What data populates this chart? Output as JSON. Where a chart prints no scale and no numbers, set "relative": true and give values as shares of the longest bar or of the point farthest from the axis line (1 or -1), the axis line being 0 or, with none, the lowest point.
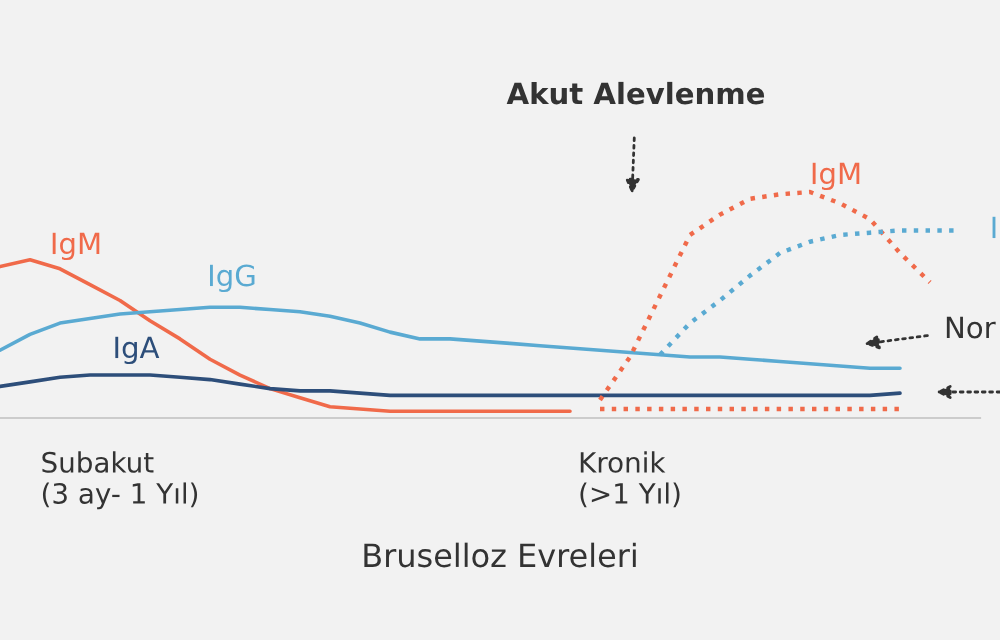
{
  "chart_data": {
    "type": "line",
    "relative": true,
    "xlabel": "Bruselloz Evreleri",
    "legend": false,
    "grid": false,
    "marker": "none",
    "categories": [
      null,
      null,
      null,
      null,
      "Subakut\n(3 ay- 1 Yıl)",
      null,
      null,
      null,
      null,
      null,
      null,
      null,
      null,
      null,
      null,
      null,
      null,
      null,
      null,
      null,
      null,
      "Kronik\n(>1 Yıl)",
      null,
      null,
      null,
      null,
      null,
      null,
      null,
      null,
      null,
      null,
      null
    ],
    "series": [
      {
        "name": "IgM",
        "color": "#f06a4a",
        "line_style": "solid",
        "values": [
          0.67,
          0.7,
          0.66,
          0.59,
          0.52,
          0.43,
          0.35,
          0.26,
          0.19,
          0.13,
          0.09,
          0.05,
          0.04,
          0.03,
          0.03,
          0.03,
          0.03,
          0.03,
          0.03,
          0.03,
          null,
          null,
          null,
          null,
          null,
          null,
          null,
          null,
          null,
          null,
          null,
          null,
          null
        ]
      },
      {
        "name": "IgG",
        "color": "#5aaad2",
        "line_style": "solid",
        "values": [
          0.3,
          0.37,
          0.42,
          0.44,
          0.46,
          0.47,
          0.48,
          0.49,
          0.49,
          0.48,
          0.47,
          0.45,
          0.42,
          0.38,
          0.35,
          0.35,
          0.34,
          0.33,
          0.32,
          0.31,
          0.3,
          0.29,
          0.28,
          0.27,
          0.27,
          0.26,
          0.25,
          0.24,
          0.23,
          0.22,
          0.22,
          null,
          null
        ]
      },
      {
        "name": "IgA",
        "color": "#2d4e7a",
        "line_style": "solid",
        "values": [
          0.14,
          0.16,
          0.18,
          0.19,
          0.19,
          0.19,
          0.18,
          0.17,
          0.15,
          0.13,
          0.12,
          0.12,
          0.11,
          0.1,
          0.1,
          0.1,
          0.1,
          0.1,
          0.1,
          0.1,
          0.1,
          0.1,
          0.1,
          0.1,
          0.1,
          0.1,
          0.1,
          0.1,
          0.1,
          0.1,
          0.11,
          null,
          null
        ]
      },
      {
        "name": "IgM",
        "color": "#f06a4a",
        "line_style": "dotted",
        "values": [
          null,
          null,
          null,
          null,
          null,
          null,
          null,
          null,
          null,
          null,
          null,
          null,
          null,
          null,
          null,
          null,
          null,
          null,
          null,
          null,
          0.08,
          0.27,
          0.54,
          0.81,
          0.9,
          0.97,
          0.99,
          1.0,
          0.95,
          0.88,
          0.73,
          0.6,
          null
        ]
      },
      {
        "color": "#f06a4a",
        "line_style": "dotted",
        "values": [
          null,
          null,
          null,
          null,
          null,
          null,
          null,
          null,
          null,
          null,
          null,
          null,
          null,
          null,
          null,
          null,
          null,
          null,
          null,
          null,
          0.04,
          0.04,
          0.04,
          0.04,
          0.04,
          0.04,
          0.04,
          0.04,
          0.04,
          0.04,
          0.04,
          null,
          null
        ]
      },
      {
        "name": "I",
        "color": "#5aaad2",
        "line_style": "dotted",
        "values": [
          null,
          null,
          null,
          null,
          null,
          null,
          null,
          null,
          null,
          null,
          null,
          null,
          null,
          null,
          null,
          null,
          null,
          null,
          null,
          null,
          null,
          null,
          0.28,
          0.42,
          0.52,
          0.63,
          0.73,
          0.78,
          0.81,
          0.82,
          0.83,
          0.83,
          0.83
        ]
      }
    ],
    "annotations": [
      "Akut Alevlenme",
      "Nor"
    ]
  }
}
